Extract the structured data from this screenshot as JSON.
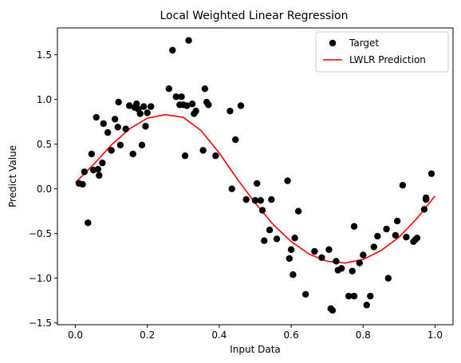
{
  "chart_data": {
    "type": "scatter",
    "title": "Local Weighted Linear Regression",
    "xlabel": "Input Data",
    "ylabel": "Predict Value",
    "xlim": [
      -0.05,
      1.05
    ],
    "ylim": [
      -1.52,
      1.8
    ],
    "xticks": [
      0.0,
      0.2,
      0.4,
      0.6,
      0.8,
      1.0
    ],
    "xtick_labels": [
      "0.0",
      "0.2",
      "0.4",
      "0.6",
      "0.8",
      "1.0"
    ],
    "yticks": [
      -1.5,
      -1.0,
      -0.5,
      0.0,
      0.5,
      1.0,
      1.5
    ],
    "ytick_labels": [
      "−1.5",
      "−1.0",
      "−0.5",
      "0.0",
      "0.5",
      "1.0",
      "1.5"
    ],
    "grid": false,
    "legend": {
      "placement": "top-right"
    },
    "series": [
      {
        "name": "Target",
        "kind": "scatter",
        "color": "#000000",
        "x": [
          0.01,
          0.02,
          0.025,
          0.035,
          0.045,
          0.05,
          0.058,
          0.063,
          0.066,
          0.075,
          0.078,
          0.09,
          0.1,
          0.11,
          0.118,
          0.12,
          0.125,
          0.14,
          0.15,
          0.16,
          0.165,
          0.17,
          0.175,
          0.18,
          0.185,
          0.19,
          0.195,
          0.2,
          0.21,
          0.26,
          0.27,
          0.28,
          0.29,
          0.295,
          0.3,
          0.305,
          0.31,
          0.315,
          0.325,
          0.33,
          0.335,
          0.355,
          0.36,
          0.365,
          0.37,
          0.39,
          0.43,
          0.435,
          0.445,
          0.46,
          0.475,
          0.5,
          0.505,
          0.515,
          0.52,
          0.525,
          0.54,
          0.545,
          0.56,
          0.59,
          0.595,
          0.6,
          0.605,
          0.61,
          0.62,
          0.64,
          0.665,
          0.685,
          0.705,
          0.71,
          0.715,
          0.725,
          0.73,
          0.74,
          0.76,
          0.77,
          0.775,
          0.775,
          0.79,
          0.8,
          0.81,
          0.82,
          0.83,
          0.84,
          0.865,
          0.87,
          0.89,
          0.895,
          0.91,
          0.92,
          0.94,
          0.945,
          0.95,
          0.97,
          0.975,
          0.975,
          0.99
        ],
        "y": [
          0.06,
          0.05,
          0.19,
          -0.38,
          0.39,
          0.21,
          0.8,
          0.22,
          0.15,
          0.29,
          0.73,
          0.63,
          0.43,
          0.78,
          0.69,
          0.97,
          0.49,
          0.67,
          0.93,
          0.39,
          0.91,
          0.95,
          0.89,
          0.84,
          0.49,
          0.92,
          0.7,
          0.85,
          0.92,
          1.12,
          1.55,
          1.03,
          0.94,
          1.03,
          0.94,
          0.37,
          0.93,
          1.66,
          0.95,
          0.84,
          0.87,
          0.43,
          1.12,
          0.97,
          0.94,
          0.37,
          0.87,
          0.0,
          0.55,
          0.93,
          -0.12,
          -0.13,
          0.06,
          -0.13,
          -0.24,
          -0.58,
          -0.46,
          -0.12,
          -0.56,
          0.09,
          -0.78,
          -0.68,
          -0.96,
          -0.55,
          -0.25,
          -1.18,
          -0.7,
          -0.77,
          -0.68,
          -1.34,
          -1.36,
          -0.81,
          -0.91,
          -0.89,
          -1.2,
          -0.92,
          -1.2,
          -0.42,
          -0.83,
          -0.74,
          -1.3,
          -1.2,
          -0.65,
          -0.53,
          -0.45,
          -1.0,
          -0.52,
          -0.36,
          0.04,
          -0.54,
          -0.59,
          -0.57,
          -0.55,
          -0.23,
          -0.1,
          -0.12,
          0.17
        ]
      },
      {
        "name": "LWLR Prediction",
        "kind": "line",
        "color": "#ff0000",
        "x": [
          0.0,
          0.05,
          0.1,
          0.15,
          0.2,
          0.25,
          0.3,
          0.35,
          0.4,
          0.45,
          0.5,
          0.55,
          0.6,
          0.65,
          0.7,
          0.75,
          0.8,
          0.85,
          0.9,
          0.95,
          1.0
        ],
        "y": [
          0.07,
          0.27,
          0.49,
          0.67,
          0.79,
          0.83,
          0.8,
          0.65,
          0.4,
          0.11,
          -0.16,
          -0.4,
          -0.59,
          -0.73,
          -0.81,
          -0.83,
          -0.79,
          -0.69,
          -0.54,
          -0.33,
          -0.08
        ]
      }
    ]
  }
}
